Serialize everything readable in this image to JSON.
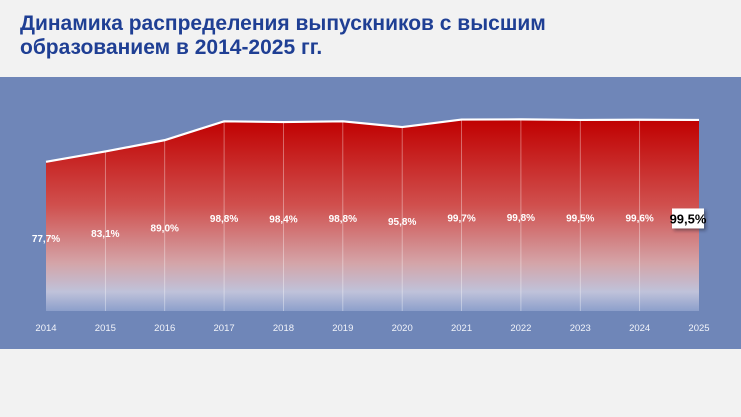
{
  "title_line1": "Динамика распределения выпускников с высшим",
  "title_line2": "образованием в 2014-2025 гг.",
  "colors": {
    "panel": "#6f86b8",
    "area_top": "#c00000",
    "area_bottom": "#9fb0d6",
    "title": "#1f3f94"
  },
  "chart_data": {
    "type": "area",
    "title": "Динамика распределения выпускников с высшим образованием в 2014-2025 гг.",
    "categories": [
      "2014",
      "2015",
      "2016",
      "2017",
      "2018",
      "2019",
      "2020",
      "2021",
      "2022",
      "2023",
      "2024",
      "2025"
    ],
    "values": [
      77.7,
      83.1,
      89.0,
      98.8,
      98.4,
      98.8,
      95.8,
      99.7,
      99.8,
      99.5,
      99.6,
      99.5
    ],
    "labels": [
      "77,7%",
      "83,1%",
      "89,0%",
      "98,8%",
      "98,4%",
      "98,8%",
      "95,8%",
      "99,7%",
      "99,8%",
      "99,5%",
      "99,6%",
      "99,5%"
    ],
    "highlighted_label_index": 11,
    "ylim": [
      0,
      100
    ],
    "xlabel": "",
    "ylabel": "",
    "grid": false,
    "legend": "none"
  }
}
